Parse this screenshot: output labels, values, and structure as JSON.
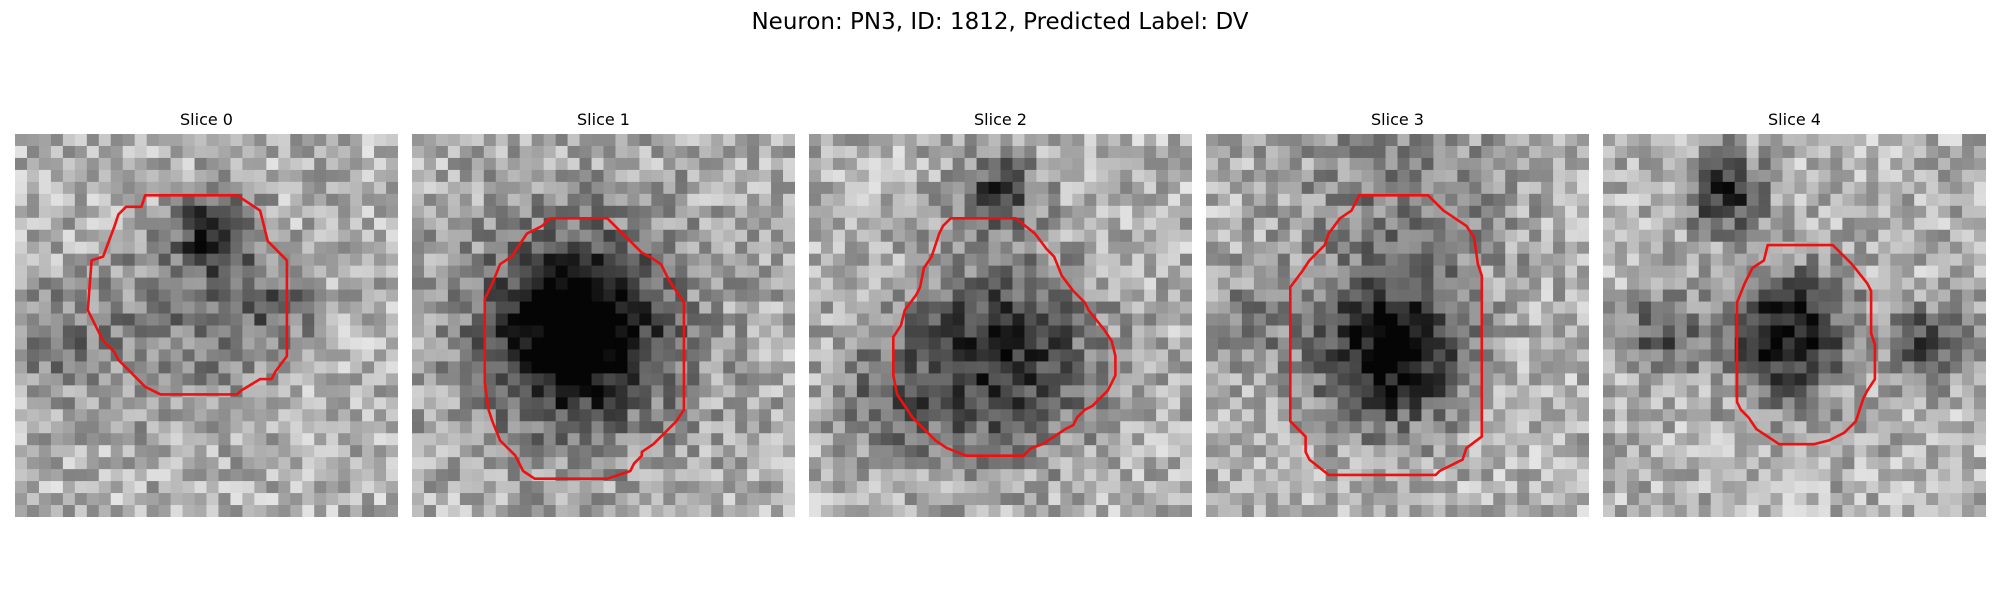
{
  "figure": {
    "title": "Neuron: PN3, ID: 1812, Predicted Label: DV"
  },
  "panels": [
    {
      "title": "Slice 0",
      "seed": 11,
      "dark": [
        [
          0.52,
          0.26,
          0.1,
          0.55
        ],
        [
          0.42,
          0.5,
          0.24,
          0.22
        ],
        [
          0.68,
          0.45,
          0.1,
          0.3
        ],
        [
          0.1,
          0.55,
          0.12,
          0.25
        ]
      ],
      "contour": [
        [
          0.34,
          0.16
        ],
        [
          0.58,
          0.16
        ],
        [
          0.64,
          0.2
        ],
        [
          0.66,
          0.28
        ],
        [
          0.71,
          0.33
        ],
        [
          0.71,
          0.58
        ],
        [
          0.68,
          0.62
        ],
        [
          0.67,
          0.64
        ],
        [
          0.64,
          0.64
        ],
        [
          0.59,
          0.67
        ],
        [
          0.58,
          0.68
        ],
        [
          0.38,
          0.68
        ],
        [
          0.34,
          0.66
        ],
        [
          0.29,
          0.61
        ],
        [
          0.27,
          0.59
        ],
        [
          0.26,
          0.57
        ],
        [
          0.23,
          0.54
        ],
        [
          0.19,
          0.46
        ],
        [
          0.2,
          0.33
        ],
        [
          0.23,
          0.32
        ],
        [
          0.26,
          0.24
        ],
        [
          0.27,
          0.21
        ],
        [
          0.29,
          0.19
        ],
        [
          0.33,
          0.19
        ]
      ]
    },
    {
      "title": "Slice 1",
      "seed": 23,
      "dark": [
        [
          0.43,
          0.52,
          0.2,
          0.75
        ],
        [
          0.43,
          0.5,
          0.38,
          0.22
        ]
      ],
      "contour": [
        [
          0.37,
          0.22
        ],
        [
          0.51,
          0.22
        ],
        [
          0.57,
          0.28
        ],
        [
          0.6,
          0.31
        ],
        [
          0.62,
          0.32
        ],
        [
          0.65,
          0.34
        ],
        [
          0.67,
          0.38
        ],
        [
          0.71,
          0.44
        ],
        [
          0.71,
          0.72
        ],
        [
          0.69,
          0.75
        ],
        [
          0.67,
          0.77
        ],
        [
          0.65,
          0.79
        ],
        [
          0.63,
          0.81
        ],
        [
          0.6,
          0.83
        ],
        [
          0.6,
          0.84
        ],
        [
          0.58,
          0.86
        ],
        [
          0.57,
          0.88
        ],
        [
          0.54,
          0.89
        ],
        [
          0.51,
          0.9
        ],
        [
          0.32,
          0.9
        ],
        [
          0.29,
          0.88
        ],
        [
          0.27,
          0.84
        ],
        [
          0.23,
          0.8
        ],
        [
          0.21,
          0.75
        ],
        [
          0.2,
          0.72
        ],
        [
          0.19,
          0.65
        ],
        [
          0.19,
          0.43
        ],
        [
          0.21,
          0.39
        ],
        [
          0.23,
          0.34
        ],
        [
          0.26,
          0.32
        ],
        [
          0.28,
          0.29
        ],
        [
          0.3,
          0.26
        ],
        [
          0.32,
          0.25
        ],
        [
          0.34,
          0.24
        ],
        [
          0.36,
          0.22
        ]
      ]
    },
    {
      "title": "Slice 2",
      "seed": 37,
      "dark": [
        [
          0.5,
          0.58,
          0.24,
          0.55
        ],
        [
          0.5,
          0.15,
          0.1,
          0.45
        ],
        [
          0.2,
          0.7,
          0.15,
          0.25
        ]
      ],
      "contour": [
        [
          0.37,
          0.22
        ],
        [
          0.54,
          0.22
        ],
        [
          0.59,
          0.26
        ],
        [
          0.62,
          0.3
        ],
        [
          0.64,
          0.32
        ],
        [
          0.66,
          0.37
        ],
        [
          0.69,
          0.41
        ],
        [
          0.72,
          0.44
        ],
        [
          0.73,
          0.46
        ],
        [
          0.77,
          0.51
        ],
        [
          0.79,
          0.54
        ],
        [
          0.8,
          0.58
        ],
        [
          0.8,
          0.63
        ],
        [
          0.79,
          0.65
        ],
        [
          0.78,
          0.67
        ],
        [
          0.77,
          0.68
        ],
        [
          0.74,
          0.71
        ],
        [
          0.72,
          0.72
        ],
        [
          0.7,
          0.74
        ],
        [
          0.69,
          0.76
        ],
        [
          0.67,
          0.77
        ],
        [
          0.64,
          0.79
        ],
        [
          0.61,
          0.81
        ],
        [
          0.58,
          0.82
        ],
        [
          0.56,
          0.84
        ],
        [
          0.41,
          0.84
        ],
        [
          0.36,
          0.82
        ],
        [
          0.33,
          0.8
        ],
        [
          0.3,
          0.77
        ],
        [
          0.27,
          0.74
        ],
        [
          0.25,
          0.71
        ],
        [
          0.23,
          0.68
        ],
        [
          0.22,
          0.63
        ],
        [
          0.22,
          0.53
        ],
        [
          0.24,
          0.5
        ],
        [
          0.25,
          0.46
        ],
        [
          0.28,
          0.42
        ],
        [
          0.29,
          0.4
        ],
        [
          0.3,
          0.35
        ],
        [
          0.32,
          0.32
        ],
        [
          0.33,
          0.29
        ],
        [
          0.34,
          0.26
        ],
        [
          0.35,
          0.24
        ]
      ]
    },
    {
      "title": "Slice 3",
      "seed": 53,
      "dark": [
        [
          0.48,
          0.58,
          0.18,
          0.7
        ],
        [
          0.5,
          0.2,
          0.3,
          0.2
        ],
        [
          0.1,
          0.5,
          0.12,
          0.2
        ]
      ],
      "contour": [
        [
          0.4,
          0.16
        ],
        [
          0.58,
          0.16
        ],
        [
          0.62,
          0.2
        ],
        [
          0.68,
          0.24
        ],
        [
          0.7,
          0.27
        ],
        [
          0.71,
          0.34
        ],
        [
          0.72,
          0.37
        ],
        [
          0.72,
          0.79
        ],
        [
          0.68,
          0.82
        ],
        [
          0.67,
          0.85
        ],
        [
          0.61,
          0.88
        ],
        [
          0.6,
          0.89
        ],
        [
          0.32,
          0.89
        ],
        [
          0.27,
          0.85
        ],
        [
          0.26,
          0.83
        ],
        [
          0.26,
          0.79
        ],
        [
          0.22,
          0.75
        ],
        [
          0.22,
          0.4
        ],
        [
          0.25,
          0.36
        ],
        [
          0.27,
          0.33
        ],
        [
          0.31,
          0.29
        ],
        [
          0.32,
          0.26
        ],
        [
          0.35,
          0.22
        ],
        [
          0.38,
          0.2
        ]
      ]
    },
    {
      "title": "Slice 4",
      "seed": 71,
      "dark": [
        [
          0.48,
          0.52,
          0.16,
          0.65
        ],
        [
          0.32,
          0.15,
          0.1,
          0.55
        ],
        [
          0.85,
          0.55,
          0.1,
          0.45
        ],
        [
          0.15,
          0.52,
          0.1,
          0.35
        ]
      ],
      "contour": [
        [
          0.43,
          0.29
        ],
        [
          0.6,
          0.29
        ],
        [
          0.65,
          0.34
        ],
        [
          0.69,
          0.39
        ],
        [
          0.7,
          0.41
        ],
        [
          0.7,
          0.52
        ],
        [
          0.71,
          0.55
        ],
        [
          0.71,
          0.64
        ],
        [
          0.69,
          0.67
        ],
        [
          0.68,
          0.69
        ],
        [
          0.67,
          0.72
        ],
        [
          0.66,
          0.75
        ],
        [
          0.63,
          0.78
        ],
        [
          0.61,
          0.79
        ],
        [
          0.59,
          0.8
        ],
        [
          0.55,
          0.81
        ],
        [
          0.46,
          0.81
        ],
        [
          0.43,
          0.79
        ],
        [
          0.4,
          0.77
        ],
        [
          0.38,
          0.74
        ],
        [
          0.36,
          0.72
        ],
        [
          0.35,
          0.7
        ],
        [
          0.35,
          0.66
        ],
        [
          0.35,
          0.44
        ],
        [
          0.37,
          0.39
        ],
        [
          0.39,
          0.35
        ],
        [
          0.42,
          0.33
        ]
      ]
    }
  ]
}
